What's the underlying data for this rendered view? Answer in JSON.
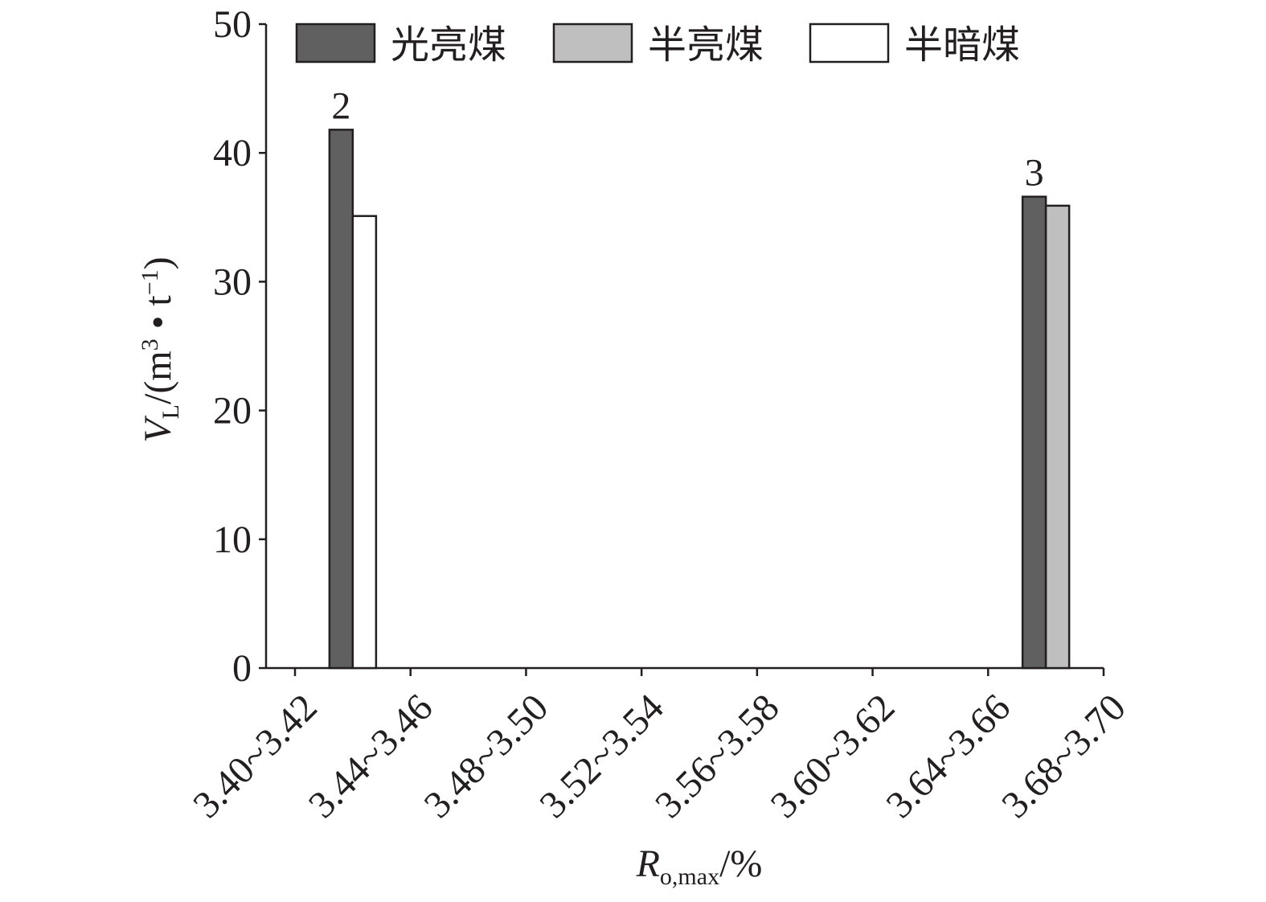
{
  "chart_data": {
    "type": "bar",
    "y_label": [
      "V",
      "L",
      "/(m",
      "3",
      " • t",
      "−1",
      ")"
    ],
    "x_label": [
      "R",
      "o,max",
      "/%"
    ],
    "categories": [
      "3.40~3.42",
      "3.44~3.46",
      "3.48~3.50",
      "3.52~3.54",
      "3.56~3.58",
      "3.60~3.62",
      "3.64~3.66",
      "3.68~3.70"
    ],
    "group_labels": [
      "2",
      null,
      null,
      null,
      null,
      null,
      "3",
      null
    ],
    "series": [
      {
        "name": "光亮煤",
        "color": "#606060",
        "values": [
          41.8,
          null,
          null,
          null,
          null,
          null,
          36.6,
          null
        ]
      },
      {
        "name": "半亮煤",
        "color": "#bfbfbf",
        "values": [
          null,
          null,
          null,
          null,
          null,
          null,
          35.9,
          null
        ]
      },
      {
        "name": "半暗煤",
        "color": "#ffffff",
        "values": [
          35.1,
          null,
          null,
          null,
          null,
          null,
          null,
          null
        ]
      }
    ],
    "ylim": [
      0,
      50
    ],
    "yticks": [
      0,
      10,
      20,
      30,
      40,
      50
    ]
  }
}
